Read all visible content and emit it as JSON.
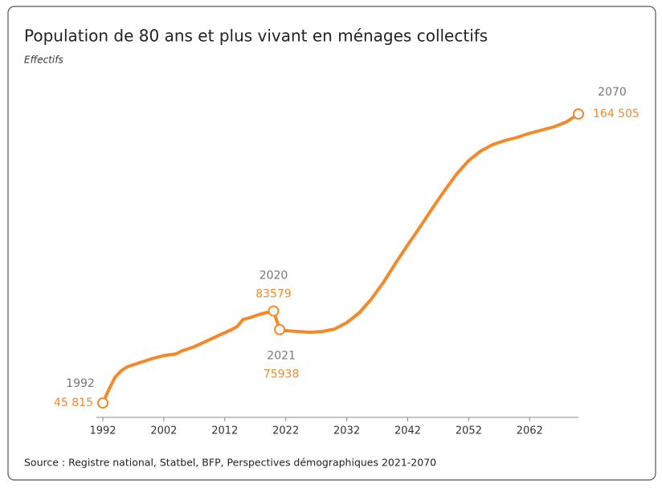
{
  "chart_data": {
    "type": "line",
    "title": "Population de 80 ans et plus vivant en ménages collectifs",
    "subtitle": "Effectifs",
    "source": "Source : Registre national, Statbel, BFP, Perspectives démographiques 2021-2070",
    "color": "#f5892a",
    "x": [
      1992,
      1993,
      1994,
      1995,
      1996,
      1998,
      2000,
      2002,
      2004,
      2005,
      2007,
      2009,
      2011,
      2013,
      2014,
      2015,
      2016,
      2018,
      2020,
      2021,
      2022,
      2024,
      2026,
      2028,
      2030,
      2032,
      2034,
      2036,
      2038,
      2040,
      2042,
      2044,
      2046,
      2048,
      2050,
      2052,
      2054,
      2056,
      2058,
      2060,
      2062,
      2064,
      2066,
      2068,
      2070
    ],
    "values": [
      45815,
      51420,
      56365,
      59000,
      60650,
      62300,
      63950,
      65270,
      65930,
      67250,
      68900,
      71200,
      73510,
      75820,
      77140,
      80100,
      80760,
      82410,
      83579,
      75938,
      75490,
      75160,
      74830,
      75160,
      76150,
      78790,
      82740,
      88350,
      95270,
      103180,
      110770,
      118020,
      125600,
      132850,
      139780,
      145380,
      149340,
      151980,
      153620,
      154940,
      156590,
      157910,
      159230,
      161210,
      164505
    ],
    "value_labels": [
      "45 815",
      null,
      null,
      null,
      null,
      null,
      null,
      null,
      null,
      null,
      null,
      null,
      null,
      null,
      null,
      null,
      null,
      null,
      "83579",
      "75938",
      null,
      null,
      null,
      null,
      null,
      null,
      null,
      null,
      null,
      null,
      null,
      null,
      null,
      null,
      null,
      null,
      null,
      null,
      null,
      null,
      null,
      null,
      null,
      null,
      "164 505"
    ],
    "xlim": [
      1992,
      2070
    ],
    "xticks": [
      1992,
      2002,
      2012,
      2022,
      2032,
      2042,
      2052,
      2062
    ]
  }
}
